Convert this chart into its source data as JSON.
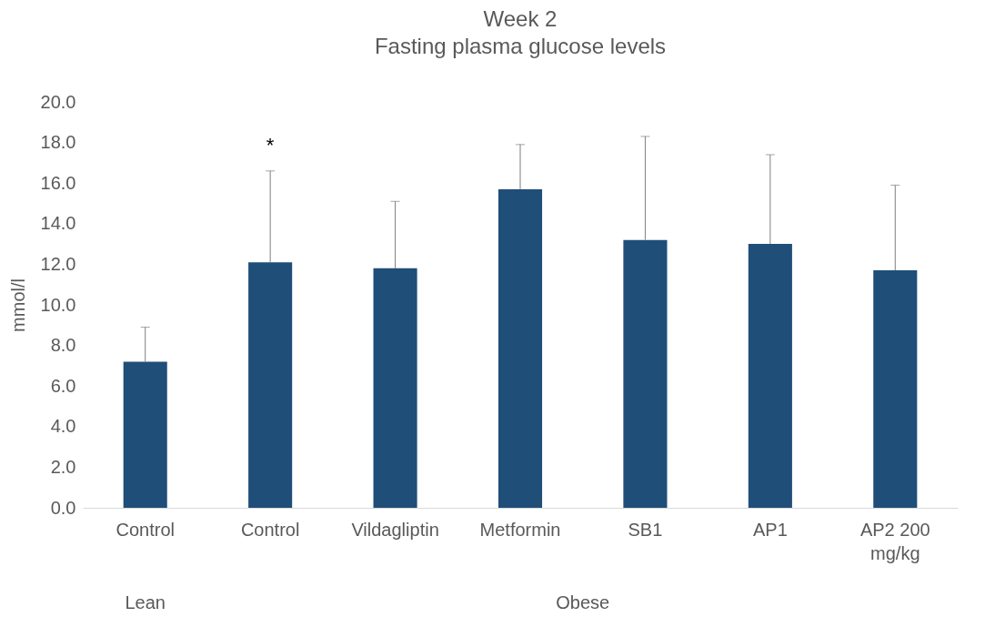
{
  "chart_data": {
    "type": "bar",
    "title": "Week 2",
    "subtitle": "Fasting plasma glucose levels",
    "ylabel": "mmol/l",
    "categories": [
      "Control",
      "Control",
      "Vildagliptin",
      "Metformin",
      "SB1",
      "AP1",
      "AP2 200 mg/kg"
    ],
    "values": [
      7.2,
      12.1,
      11.8,
      15.7,
      13.2,
      13.0,
      11.7
    ],
    "errors": [
      [
        7.2,
        8.9
      ],
      [
        12.1,
        16.6
      ],
      [
        11.8,
        15.1
      ],
      [
        15.7,
        17.9
      ],
      [
        13.2,
        18.3
      ],
      [
        13.0,
        17.4
      ],
      [
        11.7,
        15.9
      ]
    ],
    "color": "#1f4e79",
    "ylim": [
      0,
      20
    ],
    "yticks": [
      {
        "value": 0,
        "label": "0.0"
      },
      {
        "value": 2,
        "label": "2.0"
      },
      {
        "value": 4,
        "label": "4.0"
      },
      {
        "value": 6,
        "label": "6.0"
      },
      {
        "value": 8,
        "label": "8.0"
      },
      {
        "value": 10,
        "label": "10.0"
      },
      {
        "value": 12,
        "label": "12.0"
      },
      {
        "value": 14,
        "label": "14.0"
      },
      {
        "value": 16,
        "label": "16.0"
      },
      {
        "value": 18,
        "label": "18.0"
      },
      {
        "value": 20,
        "label": "20.0"
      }
    ],
    "grid": false,
    "annotations": [
      "*",
      "Lean",
      "Obese"
    ]
  }
}
